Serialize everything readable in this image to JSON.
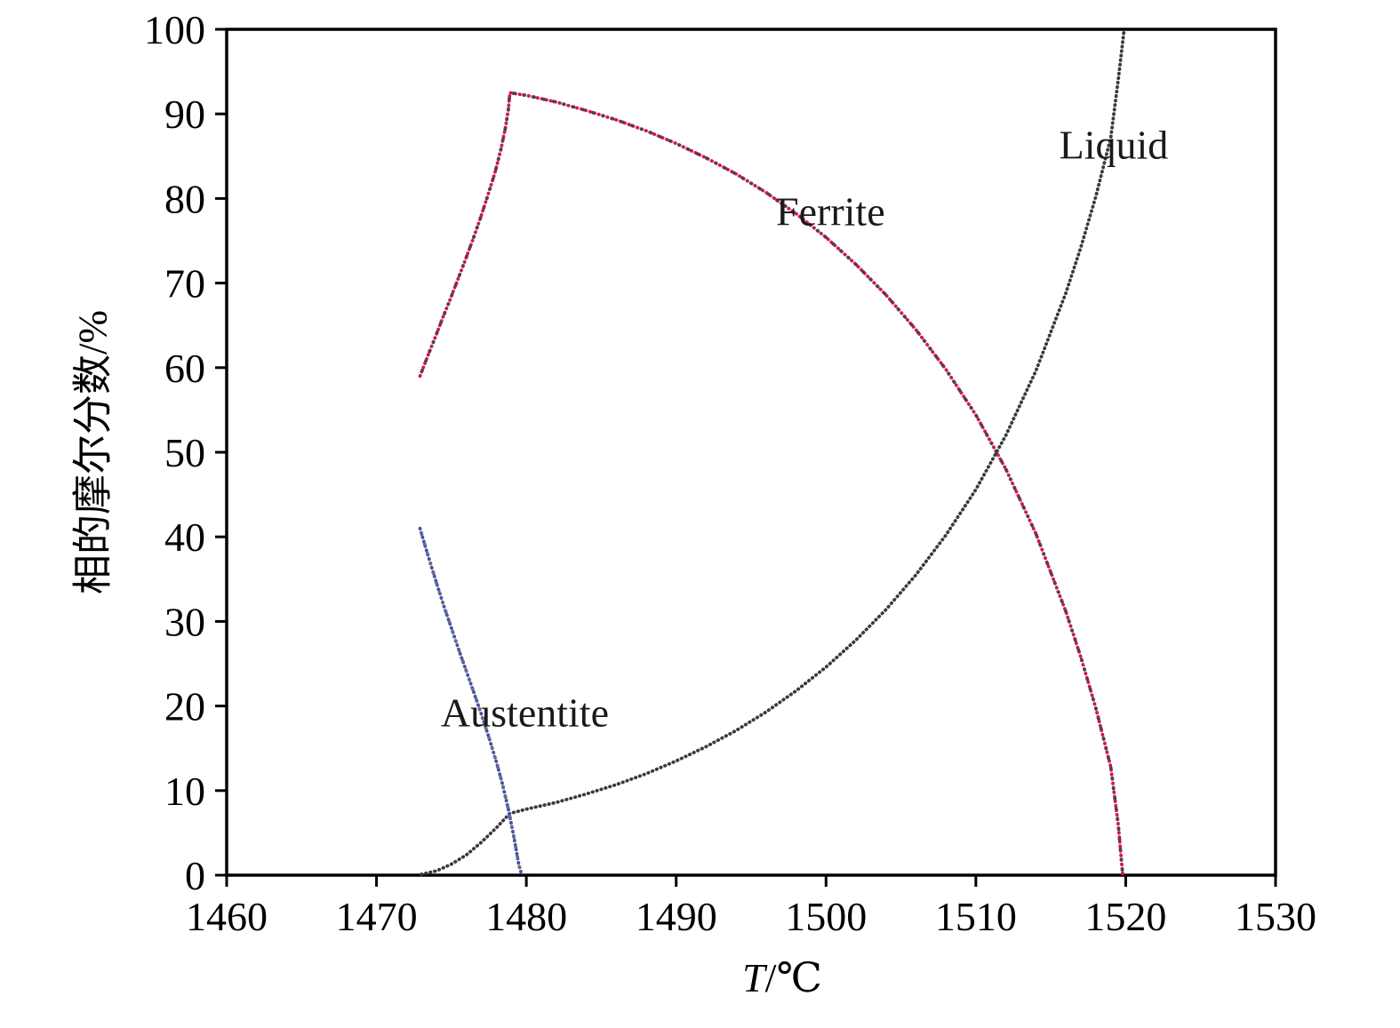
{
  "figure": {
    "background": "#ffffff",
    "frame_color": "#000000"
  },
  "chart_data": {
    "type": "line",
    "title": "",
    "xlabel_italic": "T",
    "xlabel_rest": "/℃",
    "ylabel": "相的摩尔分数/%",
    "xlim": [
      1460,
      1530
    ],
    "ylim": [
      0,
      100
    ],
    "xticks": [
      1460,
      1470,
      1480,
      1490,
      1500,
      1510,
      1520,
      1530
    ],
    "yticks": [
      0,
      10,
      20,
      30,
      40,
      50,
      60,
      70,
      80,
      90,
      100
    ],
    "grid": false,
    "legend_position": "inline-labels",
    "series": [
      {
        "name": "Ferrite",
        "color": "#d4164f",
        "overlay_color": "#44474f",
        "style": "dotted",
        "points": [
          [
            1472.9,
            59
          ],
          [
            1473.4,
            61.3
          ],
          [
            1473.9,
            63.5
          ],
          [
            1474.4,
            65.8
          ],
          [
            1474.9,
            68
          ],
          [
            1475.4,
            70.3
          ],
          [
            1475.9,
            72.6
          ],
          [
            1476.4,
            75
          ],
          [
            1476.9,
            77.5
          ],
          [
            1477.4,
            80.2
          ],
          [
            1477.9,
            83
          ],
          [
            1478.3,
            85.8
          ],
          [
            1478.6,
            88.3
          ],
          [
            1478.8,
            90.5
          ],
          [
            1478.9,
            92.5
          ],
          [
            1480,
            92.2
          ],
          [
            1482,
            91.4
          ],
          [
            1484,
            90.4
          ],
          [
            1486,
            89.3
          ],
          [
            1488,
            88.0
          ],
          [
            1490,
            86.5
          ],
          [
            1492,
            84.8
          ],
          [
            1494,
            82.9
          ],
          [
            1496,
            80.7
          ],
          [
            1498,
            78.2
          ],
          [
            1500,
            75.4
          ],
          [
            1502,
            72.2
          ],
          [
            1504,
            68.6
          ],
          [
            1506,
            64.5
          ],
          [
            1508,
            59.8
          ],
          [
            1510,
            54.4
          ],
          [
            1512,
            48.0
          ],
          [
            1514,
            40.4
          ],
          [
            1516,
            31.2
          ],
          [
            1517,
            25.8
          ],
          [
            1518,
            19.8
          ],
          [
            1519,
            12.8
          ],
          [
            1519.5,
            6
          ],
          [
            1519.8,
            0
          ]
        ]
      },
      {
        "name": "Liquid",
        "color": "#3a3a3a",
        "style": "dotted",
        "points": [
          [
            1473,
            0.1
          ],
          [
            1474,
            0.5
          ],
          [
            1475,
            1.3
          ],
          [
            1476,
            2.4
          ],
          [
            1477,
            3.9
          ],
          [
            1478,
            5.6
          ],
          [
            1478.9,
            7.3
          ],
          [
            1480,
            7.8
          ],
          [
            1482,
            8.6
          ],
          [
            1484,
            9.6
          ],
          [
            1486,
            10.7
          ],
          [
            1488,
            12.0
          ],
          [
            1490,
            13.5
          ],
          [
            1492,
            15.2
          ],
          [
            1494,
            17.1
          ],
          [
            1496,
            19.3
          ],
          [
            1498,
            21.8
          ],
          [
            1500,
            24.6
          ],
          [
            1502,
            27.8
          ],
          [
            1504,
            31.4
          ],
          [
            1506,
            35.5
          ],
          [
            1508,
            40.2
          ],
          [
            1510,
            45.6
          ],
          [
            1512,
            52
          ],
          [
            1514,
            59.6
          ],
          [
            1516,
            68.8
          ],
          [
            1517,
            74.2
          ],
          [
            1518,
            80.2
          ],
          [
            1519,
            87.2
          ],
          [
            1519.5,
            94
          ],
          [
            1519.9,
            100
          ]
        ]
      },
      {
        "name": "Austentite",
        "color": "#3f51b5",
        "overlay_color": "#6e6e6e",
        "style": "dotted",
        "points": [
          [
            1472.9,
            41
          ],
          [
            1473.3,
            38.6
          ],
          [
            1473.7,
            36.3
          ],
          [
            1474.1,
            34
          ],
          [
            1474.5,
            31.8
          ],
          [
            1475,
            29.2
          ],
          [
            1475.5,
            26.6
          ],
          [
            1476,
            24.1
          ],
          [
            1476.5,
            21.6
          ],
          [
            1477,
            19
          ],
          [
            1477.5,
            16.3
          ],
          [
            1478,
            13.4
          ],
          [
            1478.4,
            10.8
          ],
          [
            1478.8,
            7.8
          ],
          [
            1479.2,
            4.2
          ],
          [
            1479.5,
            1.2
          ],
          [
            1479.7,
            0
          ]
        ]
      }
    ],
    "annotations": [
      {
        "text": "Ferrite",
        "x": 1500.3,
        "y": 78.5,
        "color": "#1a1a1a"
      },
      {
        "text": "Liquid",
        "x": 1519.2,
        "y": 86.3,
        "color": "#1a1a1a"
      },
      {
        "text": "Austentite",
        "x": 1479.9,
        "y": 19.2,
        "color": "#1a1a1a"
      }
    ]
  }
}
